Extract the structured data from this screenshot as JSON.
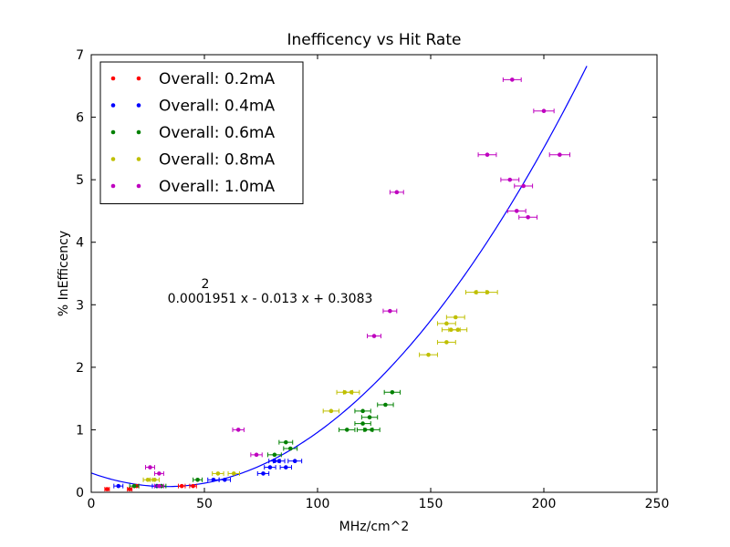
{
  "chart_data": {
    "type": "scatter",
    "title": "Inefficency vs Hit Rate",
    "xlabel": "MHz/cm^2",
    "ylabel": "% InEfficency",
    "xlim": [
      0,
      250
    ],
    "ylim": [
      0,
      7
    ],
    "xticks": [
      "0",
      "50",
      "100",
      "150",
      "200",
      "250"
    ],
    "yticks": [
      "0",
      "1",
      "2",
      "3",
      "4",
      "5",
      "6",
      "7"
    ],
    "legend_position": "top-left",
    "annotation": {
      "exponent": "2",
      "equation": "0.0001951 x - 0.013 x + 0.3083"
    },
    "fit": {
      "coefficients": [
        0.0001951,
        -0.013,
        0.3083
      ],
      "x_range": [
        0,
        219
      ],
      "color": "#0000ff"
    },
    "series": [
      {
        "name": "Overall: 0.2mA",
        "color": "#ff0000",
        "points": [
          {
            "x": 7,
            "y": 0.05,
            "xerr": 1
          },
          {
            "x": 17,
            "y": 0.05,
            "xerr": 1
          },
          {
            "x": 20,
            "y": 0.1,
            "xerr": 1
          },
          {
            "x": 40,
            "y": 0.1,
            "xerr": 1.5
          },
          {
            "x": 45,
            "y": 0.1,
            "xerr": 1.5
          }
        ]
      },
      {
        "name": "Overall: 0.4mA",
        "color": "#0000ff",
        "points": [
          {
            "x": 12,
            "y": 0.1,
            "xerr": 2
          },
          {
            "x": 29,
            "y": 0.1,
            "xerr": 2
          },
          {
            "x": 54,
            "y": 0.2,
            "xerr": 2.5
          },
          {
            "x": 59,
            "y": 0.2,
            "xerr": 2.5
          },
          {
            "x": 76,
            "y": 0.3,
            "xerr": 2.5
          },
          {
            "x": 79,
            "y": 0.4,
            "xerr": 2.5
          },
          {
            "x": 81,
            "y": 0.5,
            "xerr": 2.5
          },
          {
            "x": 83,
            "y": 0.5,
            "xerr": 2.5
          },
          {
            "x": 86,
            "y": 0.4,
            "xerr": 2.5
          },
          {
            "x": 90,
            "y": 0.5,
            "xerr": 3
          }
        ]
      },
      {
        "name": "Overall: 0.6mA",
        "color": "#008000",
        "points": [
          {
            "x": 19,
            "y": 0.1,
            "xerr": 2
          },
          {
            "x": 31,
            "y": 0.1,
            "xerr": 2
          },
          {
            "x": 47,
            "y": 0.2,
            "xerr": 2
          },
          {
            "x": 81,
            "y": 0.6,
            "xerr": 3
          },
          {
            "x": 86,
            "y": 0.8,
            "xerr": 3
          },
          {
            "x": 88,
            "y": 0.7,
            "xerr": 3
          },
          {
            "x": 113,
            "y": 1.0,
            "xerr": 3.5
          },
          {
            "x": 120,
            "y": 1.3,
            "xerr": 3.5
          },
          {
            "x": 120,
            "y": 1.1,
            "xerr": 3.5
          },
          {
            "x": 121,
            "y": 1.0,
            "xerr": 3.5
          },
          {
            "x": 123,
            "y": 1.2,
            "xerr": 3.5
          },
          {
            "x": 124,
            "y": 1.0,
            "xerr": 3.5
          },
          {
            "x": 130,
            "y": 1.4,
            "xerr": 3.5
          },
          {
            "x": 133,
            "y": 1.6,
            "xerr": 3.5
          }
        ]
      },
      {
        "name": "Overall: 0.8mA",
        "color": "#bfbf00",
        "points": [
          {
            "x": 25,
            "y": 0.2,
            "xerr": 2
          },
          {
            "x": 28,
            "y": 0.2,
            "xerr": 2
          },
          {
            "x": 56,
            "y": 0.3,
            "xerr": 2.5
          },
          {
            "x": 63,
            "y": 0.3,
            "xerr": 2.5
          },
          {
            "x": 106,
            "y": 1.3,
            "xerr": 3.5
          },
          {
            "x": 112,
            "y": 1.6,
            "xerr": 3.5
          },
          {
            "x": 115,
            "y": 1.6,
            "xerr": 3.5
          },
          {
            "x": 149,
            "y": 2.2,
            "xerr": 4
          },
          {
            "x": 157,
            "y": 2.4,
            "xerr": 4
          },
          {
            "x": 157,
            "y": 2.7,
            "xerr": 4
          },
          {
            "x": 159,
            "y": 2.6,
            "xerr": 4
          },
          {
            "x": 162,
            "y": 2.6,
            "xerr": 4
          },
          {
            "x": 161,
            "y": 2.8,
            "xerr": 4
          },
          {
            "x": 170,
            "y": 3.2,
            "xerr": 4.5
          },
          {
            "x": 175,
            "y": 3.2,
            "xerr": 4.5
          }
        ]
      },
      {
        "name": "Overall: 1.0mA",
        "color": "#bf00bf",
        "points": [
          {
            "x": 26,
            "y": 0.4,
            "xerr": 2
          },
          {
            "x": 30,
            "y": 0.3,
            "xerr": 2
          },
          {
            "x": 30,
            "y": 0.1,
            "xerr": 2
          },
          {
            "x": 65,
            "y": 1.0,
            "xerr": 2.5
          },
          {
            "x": 73,
            "y": 0.6,
            "xerr": 2.5
          },
          {
            "x": 125,
            "y": 2.5,
            "xerr": 3
          },
          {
            "x": 132,
            "y": 2.9,
            "xerr": 3
          },
          {
            "x": 135,
            "y": 4.8,
            "xerr": 3
          },
          {
            "x": 175,
            "y": 5.4,
            "xerr": 4
          },
          {
            "x": 185,
            "y": 5.0,
            "xerr": 4
          },
          {
            "x": 186,
            "y": 6.6,
            "xerr": 4
          },
          {
            "x": 188,
            "y": 4.5,
            "xerr": 4
          },
          {
            "x": 191,
            "y": 4.9,
            "xerr": 4
          },
          {
            "x": 193,
            "y": 4.4,
            "xerr": 4
          },
          {
            "x": 200,
            "y": 6.1,
            "xerr": 4.5
          },
          {
            "x": 207,
            "y": 5.4,
            "xerr": 4.5
          }
        ]
      }
    ]
  }
}
